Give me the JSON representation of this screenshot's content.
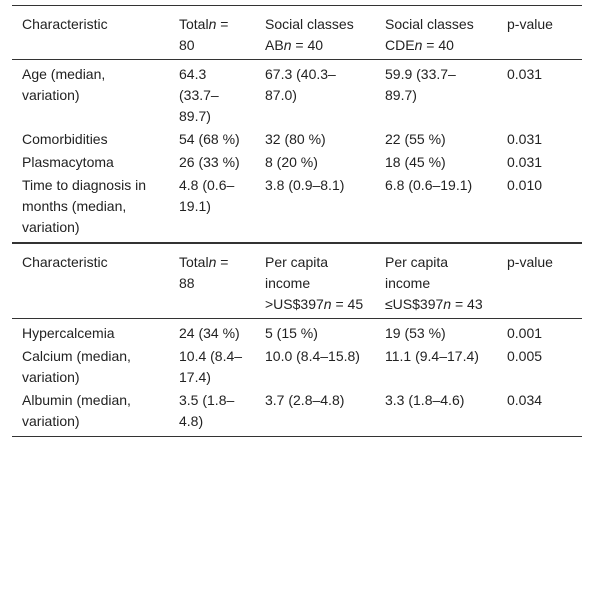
{
  "table": {
    "sections": [
      {
        "header": [
          [
            "Characteristic"
          ],
          [
            "Total",
            "n",
            " = 80"
          ],
          [
            "Social classes AB",
            "n",
            " = 40"
          ],
          [
            "Social classes CDE",
            "n",
            " = 40"
          ],
          [
            "p-value"
          ]
        ],
        "rows": [
          [
            "Age (median, variation)",
            "64.3 (33.7–89.7)",
            "67.3 (40.3–87.0)",
            "59.9 (33.7–89.7)",
            "0.031"
          ],
          [
            "Comorbidities",
            "54 (68 %)",
            "32 (80 %)",
            "22 (55 %)",
            "0.031"
          ],
          [
            "Plasmacytoma",
            "26 (33 %)",
            "8 (20 %)",
            "18 (45 %)",
            "0.031"
          ],
          [
            "Time to diagnosis in months (median, variation)",
            "4.8 (0.6–19.1)",
            "3.8 (0.9–8.1)",
            "6.8 (0.6–19.1)",
            "0.010"
          ]
        ]
      },
      {
        "header": [
          [
            "Characteristic"
          ],
          [
            "Total",
            "n",
            " = 88"
          ],
          [
            "Per capita income >US$397",
            "n",
            " = 45"
          ],
          [
            "Per capita income ≤US$397",
            "n",
            " = 43"
          ],
          [
            "p-value"
          ]
        ],
        "rows": [
          [
            "Hypercalcemia",
            "24 (34 %)",
            "5 (15 %)",
            "19 (53 %)",
            "0.001"
          ],
          [
            "Calcium (median, variation)",
            "10.4 (8.4–17.4)",
            "10.0 (8.4–15.8)",
            "11.1 (9.4–17.4)",
            "0.005"
          ],
          [
            "Albumin (median, variation)",
            "3.5 (1.8–4.8)",
            "3.7 (2.8–4.8)",
            "3.3 (1.8–4.6)",
            "0.034"
          ]
        ]
      }
    ]
  }
}
